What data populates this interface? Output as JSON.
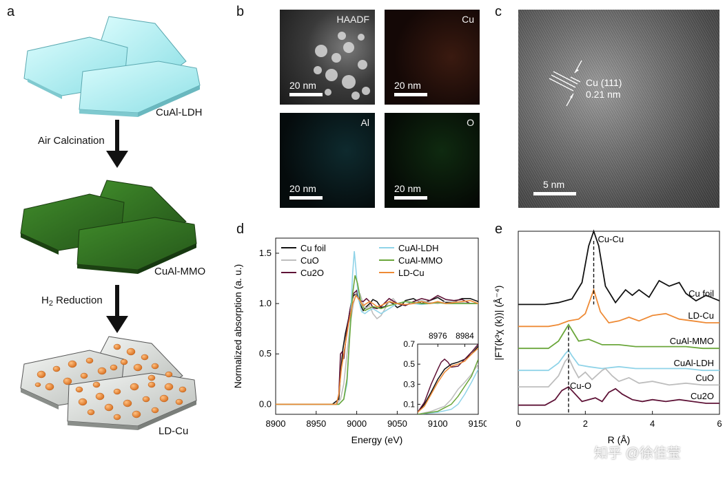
{
  "panels": {
    "a": {
      "label": "a",
      "stage1": "CuAl-LDH",
      "step1": "Air Calcination",
      "stage2": "CuAl-MMO",
      "step2_main": "H",
      "step2_sub": "2",
      "step2_rest": " Reduction",
      "stage3": "LD-Cu",
      "colors": {
        "ldh": "#aeeef0",
        "mmo": "#2f6a1e",
        "particles": "#ef8f3f"
      }
    },
    "b": {
      "label": "b",
      "maps": [
        {
          "tag": "HAADF",
          "scale": "20 nm"
        },
        {
          "tag": "Cu",
          "scale": "20 nm"
        },
        {
          "tag": "Al",
          "scale": "20 nm"
        },
        {
          "tag": "O",
          "scale": "20 nm"
        }
      ]
    },
    "c": {
      "label": "c",
      "lattice_plane": "Cu (111)",
      "spacing": "0.21 nm",
      "scale": "5 nm"
    }
  },
  "chart_data": [
    {
      "panel": "d",
      "type": "line",
      "xlabel": "Energy (eV)",
      "ylabel": "Normalized absorption (a. u.)",
      "xlim": [
        8900,
        9150
      ],
      "ylim": [
        -0.1,
        1.65
      ],
      "xticks": [
        "8900",
        "8950",
        "9000",
        "9050",
        "9100",
        "9150"
      ],
      "yticks": [
        "0.0",
        "0.5",
        "1.0",
        "1.5"
      ],
      "legend_left": [
        "Cu foil",
        "CuO",
        "Cu2O"
      ],
      "legend_right": [
        "CuAl-LDH",
        "CuAl-MMO",
        "LD-Cu"
      ],
      "series": [
        {
          "name": "Cu foil",
          "color": "#111111",
          "x": [
            8900,
            8970,
            8978,
            8980,
            8983,
            8986,
            8990,
            8993,
            8996,
            9000,
            9004,
            9008,
            9012,
            9016,
            9020,
            9025,
            9030,
            9035,
            9040,
            9045,
            9050,
            9055,
            9060,
            9070,
            9080,
            9090,
            9100,
            9110,
            9120,
            9130,
            9140,
            9150
          ],
          "y": [
            0.0,
            0.0,
            0.05,
            0.3,
            0.55,
            0.7,
            0.85,
            1.0,
            1.08,
            1.1,
            1.0,
            0.93,
            0.97,
            1.0,
            1.04,
            1.02,
            0.96,
            0.97,
            1.02,
            1.0,
            0.96,
            0.98,
            1.03,
            1.05,
            1.0,
            1.03,
            1.06,
            1.01,
            1.02,
            1.05,
            1.05,
            1.02
          ]
        },
        {
          "name": "CuO",
          "color": "#bdbdbd",
          "x": [
            8900,
            8975,
            8980,
            8984,
            8988,
            8992,
            8996,
            9000,
            9004,
            9008,
            9012,
            9016,
            9020,
            9025,
            9030,
            9035,
            9040,
            9045,
            9050,
            9060,
            9070,
            9080,
            9090,
            9100,
            9110,
            9120,
            9130,
            9140,
            9150
          ],
          "y": [
            0.0,
            0.0,
            0.05,
            0.2,
            0.5,
            0.8,
            1.0,
            1.12,
            1.1,
            1.0,
            0.95,
            0.98,
            0.9,
            0.85,
            0.88,
            0.95,
            1.02,
            1.05,
            1.0,
            0.98,
            1.02,
            1.03,
            1.01,
            1.0,
            1.02,
            1.02,
            1.01,
            1.0,
            1.0
          ]
        },
        {
          "name": "Cu2O",
          "color": "#5e1236",
          "x": [
            8900,
            8975,
            8978,
            8980,
            8982,
            8984,
            8988,
            8992,
            8996,
            9000,
            9004,
            9008,
            9012,
            9016,
            9020,
            9025,
            9030,
            9040,
            9050,
            9060,
            9070,
            9080,
            9090,
            9100,
            9110,
            9120,
            9130,
            9140,
            9150
          ],
          "y": [
            0.0,
            0.0,
            0.1,
            0.5,
            0.52,
            0.45,
            0.75,
            0.95,
            1.1,
            1.13,
            1.03,
            1.02,
            1.05,
            1.02,
            0.96,
            0.95,
            0.97,
            1.05,
            1.0,
            0.98,
            1.02,
            1.05,
            1.03,
            1.08,
            1.04,
            1.03,
            1.04,
            1.0,
            1.0
          ]
        },
        {
          "name": "CuAl-LDH",
          "color": "#8fd3e8",
          "x": [
            8900,
            8978,
            8984,
            8988,
            8992,
            8995,
            8997,
            8999,
            9002,
            9006,
            9010,
            9015,
            9020,
            9030,
            9040,
            9050,
            9060,
            9070,
            9080,
            9090,
            9100,
            9110,
            9120,
            9130,
            9140,
            9150
          ],
          "y": [
            0.0,
            0.0,
            0.05,
            0.2,
            0.8,
            1.3,
            1.52,
            1.35,
            1.05,
            0.92,
            0.9,
            0.93,
            0.95,
            0.9,
            0.95,
            1.0,
            1.02,
            1.0,
            0.99,
            1.0,
            1.01,
            1.0,
            1.0,
            1.0,
            1.0,
            1.0
          ]
        },
        {
          "name": "CuAl-MMO",
          "color": "#6aa63a",
          "x": [
            8900,
            8978,
            8984,
            8988,
            8992,
            8995,
            8998,
            9001,
            9005,
            9010,
            9015,
            9020,
            9030,
            9040,
            9050,
            9060,
            9070,
            9080,
            9090,
            9100,
            9110,
            9120,
            9130,
            9140,
            9150
          ],
          "y": [
            0.0,
            0.0,
            0.05,
            0.25,
            0.75,
            1.1,
            1.28,
            1.2,
            1.02,
            0.93,
            0.95,
            0.97,
            0.95,
            0.98,
            1.0,
            1.02,
            1.01,
            1.0,
            1.0,
            1.01,
            1.0,
            1.0,
            1.0,
            1.0,
            1.0
          ]
        },
        {
          "name": "LD-Cu",
          "color": "#ee8a35",
          "x": [
            8900,
            8975,
            8978,
            8981,
            8985,
            8990,
            8995,
            8999,
            9003,
            9008,
            9012,
            9016,
            9020,
            9025,
            9030,
            9040,
            9050,
            9060,
            9070,
            9080,
            9090,
            9100,
            9110,
            9120,
            9130,
            9140,
            9150
          ],
          "y": [
            0.0,
            0.0,
            0.1,
            0.35,
            0.55,
            0.8,
            1.0,
            1.08,
            1.04,
            0.98,
            1.0,
            1.02,
            1.0,
            0.97,
            0.98,
            1.02,
            1.0,
            0.99,
            1.0,
            1.02,
            1.0,
            1.02,
            1.0,
            1.01,
            1.02,
            1.03,
            1.0
          ]
        }
      ],
      "inset": {
        "xlim": [
          8970,
          8988
        ],
        "ylim": [
          0.0,
          0.7
        ],
        "xticks": [
          "8976",
          "8984"
        ],
        "yticks": [
          "0.1",
          "0.3",
          "0.5",
          "0.7"
        ],
        "series": [
          {
            "name": "Cu foil",
            "color": "#111111",
            "x": [
              8970,
              8972,
              8974,
              8976,
              8978,
              8980,
              8982,
              8984,
              8986,
              8988
            ],
            "y": [
              0.02,
              0.1,
              0.22,
              0.35,
              0.45,
              0.5,
              0.52,
              0.55,
              0.6,
              0.68
            ]
          },
          {
            "name": "CuO",
            "color": "#bdbdbd",
            "x": [
              8970,
              8974,
              8978,
              8980,
              8982,
              8984,
              8986,
              8988
            ],
            "y": [
              0.0,
              0.03,
              0.08,
              0.15,
              0.25,
              0.32,
              0.4,
              0.5
            ]
          },
          {
            "name": "Cu2O",
            "color": "#5e1236",
            "x": [
              8970,
              8972,
              8974,
              8976,
              8977,
              8978,
              8979,
              8980,
              8982,
              8984,
              8986,
              8988
            ],
            "y": [
              0.02,
              0.12,
              0.3,
              0.45,
              0.52,
              0.55,
              0.52,
              0.47,
              0.48,
              0.55,
              0.62,
              0.7
            ]
          },
          {
            "name": "CuAl-LDH",
            "color": "#8fd3e8",
            "x": [
              8970,
              8976,
              8980,
              8982,
              8984,
              8986,
              8988
            ],
            "y": [
              0.0,
              0.02,
              0.05,
              0.1,
              0.2,
              0.32,
              0.45
            ]
          },
          {
            "name": "CuAl-MMO",
            "color": "#6aa63a",
            "x": [
              8970,
              8976,
              8980,
              8982,
              8984,
              8986,
              8988
            ],
            "y": [
              0.0,
              0.03,
              0.1,
              0.18,
              0.28,
              0.38,
              0.55
            ]
          },
          {
            "name": "LD-Cu",
            "color": "#ee8a35",
            "x": [
              8970,
              8972,
              8974,
              8976,
              8978,
              8980,
              8982,
              8984,
              8986,
              8988
            ],
            "y": [
              0.02,
              0.08,
              0.2,
              0.32,
              0.42,
              0.48,
              0.5,
              0.53,
              0.6,
              0.66
            ]
          }
        ]
      }
    },
    {
      "panel": "e",
      "type": "line",
      "xlabel": "R (Å)",
      "ylabel": "|FT(k³χ (k))| (Å⁻⁴)",
      "xlim": [
        0,
        6
      ],
      "ylim": [
        0,
        1
      ],
      "xticks": [
        "0",
        "2",
        "4",
        "6"
      ],
      "annotations": {
        "top": "Cu-Cu",
        "bottom": "Cu-O",
        "cucu_r": 2.25,
        "cuo_r": 1.5
      },
      "series": [
        {
          "name": "Cu foil",
          "color": "#111111",
          "offset": 0.55,
          "x": [
            0,
            0.8,
            1.2,
            1.6,
            1.9,
            2.1,
            2.25,
            2.4,
            2.6,
            2.9,
            3.2,
            3.4,
            3.6,
            3.9,
            4.2,
            4.5,
            4.8,
            5.0,
            5.3,
            5.6,
            6.0
          ],
          "y": [
            0.0,
            0.0,
            0.01,
            0.03,
            0.12,
            0.32,
            0.4,
            0.32,
            0.1,
            0.01,
            0.08,
            0.05,
            0.08,
            0.04,
            0.13,
            0.1,
            0.12,
            0.06,
            0.02,
            0.05,
            0.02
          ]
        },
        {
          "name": "LD-Cu",
          "color": "#ee8a35",
          "offset": 0.43,
          "x": [
            0,
            0.9,
            1.2,
            1.5,
            1.8,
            2.0,
            2.25,
            2.45,
            2.7,
            3.0,
            3.3,
            3.6,
            4.0,
            4.4,
            4.8,
            5.2,
            5.6,
            6.0
          ],
          "y": [
            0.0,
            0.0,
            0.01,
            0.03,
            0.04,
            0.07,
            0.2,
            0.08,
            0.02,
            0.03,
            0.05,
            0.03,
            0.06,
            0.07,
            0.04,
            0.03,
            0.02,
            0.02
          ]
        },
        {
          "name": "CuAl-MMO",
          "color": "#6aa63a",
          "offset": 0.31,
          "x": [
            0,
            0.9,
            1.2,
            1.4,
            1.5,
            1.6,
            1.8,
            2.1,
            2.5,
            3.0,
            3.5,
            4.0,
            4.5,
            5.0,
            5.5,
            6.0
          ],
          "y": [
            0.0,
            0.0,
            0.04,
            0.1,
            0.13,
            0.1,
            0.04,
            0.05,
            0.02,
            0.02,
            0.01,
            0.01,
            0.01,
            0.01,
            0.0,
            0.0
          ]
        },
        {
          "name": "CuAl-LDH",
          "color": "#8fd3e8",
          "offset": 0.19,
          "x": [
            0,
            0.9,
            1.2,
            1.4,
            1.5,
            1.6,
            1.8,
            2.1,
            2.5,
            3.0,
            3.5,
            4.0,
            4.5,
            5.0,
            5.5,
            6.0
          ],
          "y": [
            0.0,
            0.0,
            0.04,
            0.09,
            0.11,
            0.08,
            0.03,
            0.02,
            0.01,
            0.02,
            0.01,
            0.01,
            0.01,
            0.01,
            0.0,
            0.0
          ]
        },
        {
          "name": "CuO",
          "color": "#bdbdbd",
          "offset": 0.1,
          "x": [
            0,
            0.9,
            1.2,
            1.4,
            1.5,
            1.65,
            1.8,
            2.0,
            2.2,
            2.5,
            2.6,
            2.8,
            3.0,
            3.3,
            3.6,
            4.0,
            4.5,
            5.0,
            5.5,
            6.0
          ],
          "y": [
            0.0,
            0.0,
            0.06,
            0.14,
            0.16,
            0.1,
            0.05,
            0.08,
            0.04,
            0.09,
            0.1,
            0.06,
            0.03,
            0.05,
            0.02,
            0.03,
            0.01,
            0.02,
            0.01,
            0.01
          ]
        },
        {
          "name": "Cu2O",
          "color": "#5e1236",
          "offset": 0.0,
          "x": [
            0,
            0.8,
            1.1,
            1.3,
            1.5,
            1.7,
            1.9,
            2.1,
            2.3,
            2.5,
            2.7,
            2.9,
            3.1,
            3.4,
            3.7,
            4.0,
            4.4,
            4.8,
            5.2,
            5.6,
            6.0
          ],
          "y": [
            0.0,
            0.0,
            0.03,
            0.08,
            0.1,
            0.06,
            0.02,
            0.03,
            0.04,
            0.02,
            0.07,
            0.09,
            0.06,
            0.03,
            0.02,
            0.03,
            0.02,
            0.03,
            0.02,
            0.01,
            0.01
          ]
        }
      ]
    }
  ],
  "watermark": "知乎 @徐佳莹"
}
